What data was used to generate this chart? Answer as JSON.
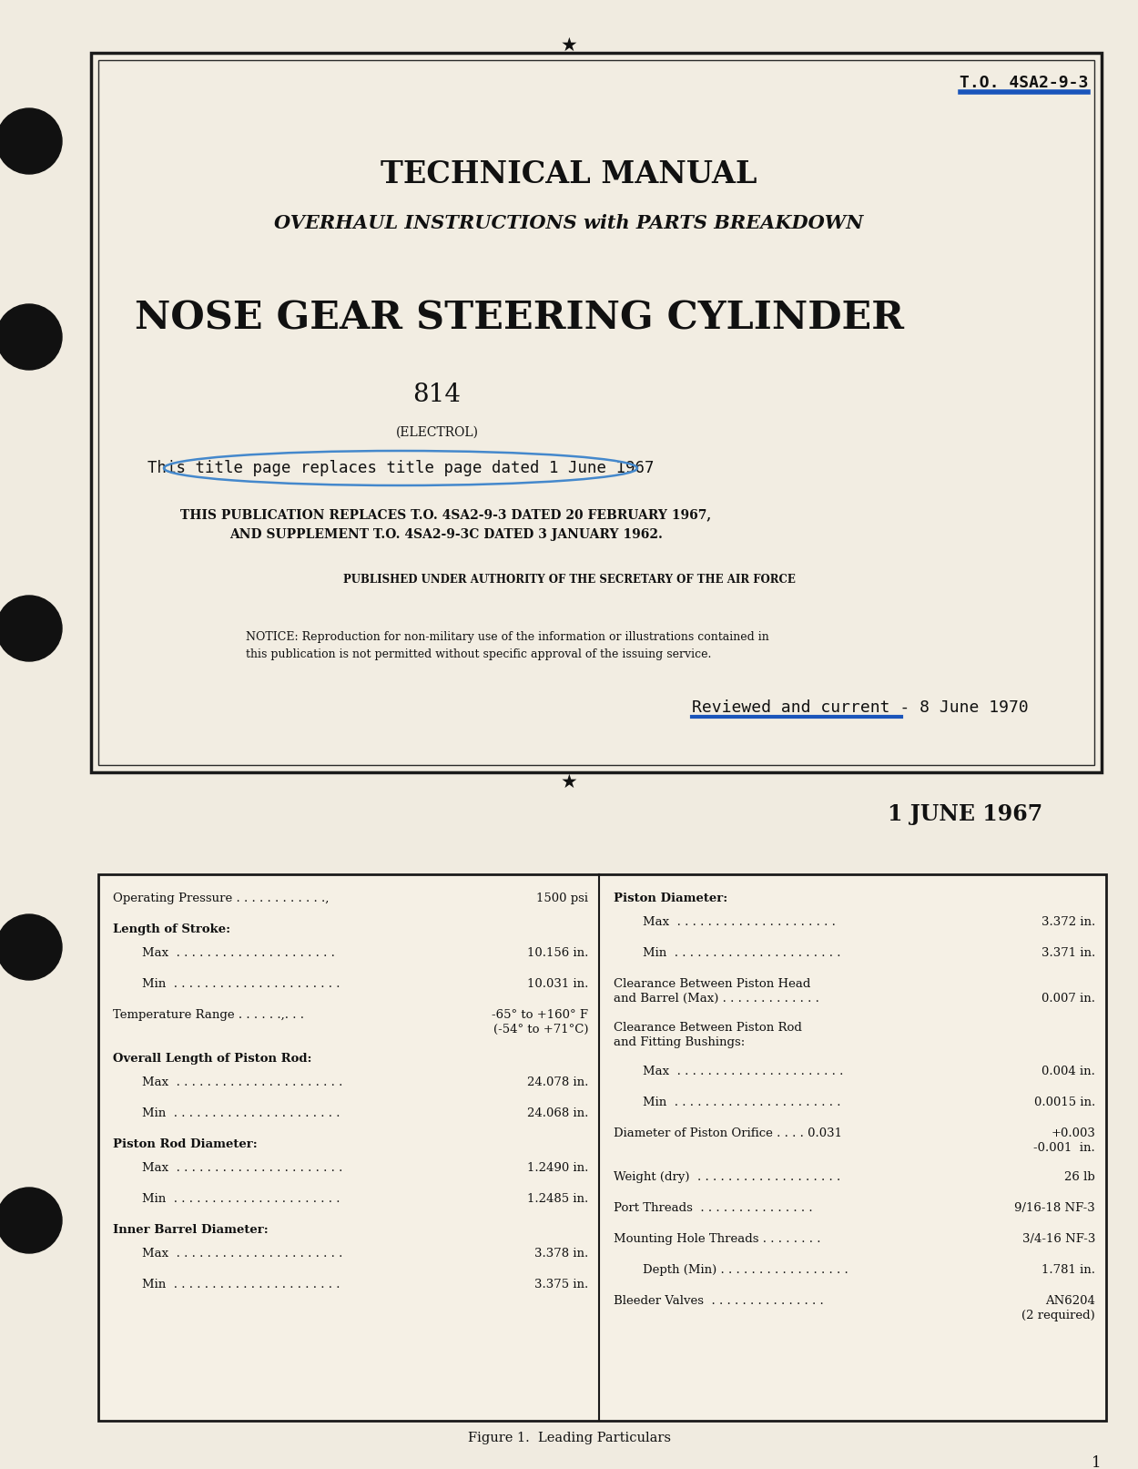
{
  "bg_color": "#f0ebe0",
  "to_number": "T.O. 4SA2-9-3",
  "title1": "TECHNICAL MANUAL",
  "title2": "OVERHAUL INSTRUCTIONS with PARTS BREAKDOWN",
  "title3": "NOSE GEAR STEERING CYLINDER",
  "part_number": "814",
  "electrol": "(ELECTROL)",
  "replace_line": "This title page replaces title page dated 1 June 1967",
  "pub_line1": "THIS PUBLICATION REPLACES T.O. 4SA2-9-3 DATED 20 FEBRUARY 1967,",
  "pub_line2": "AND SUPPLEMENT T.O. 4SA2-9-3C DATED 3 JANUARY 1962.",
  "authority": "PUBLISHED UNDER AUTHORITY OF THE SECRETARY OF THE AIR FORCE",
  "notice_line1": "NOTICE: Reproduction for non-military use of the information or illustrations contained in",
  "notice_line2": "this publication is not permitted without specific approval of the issuing service.",
  "reviewed": "Reviewed and current - 8 June 1970",
  "date": "1 JUNE 1967",
  "figure_caption": "Figure 1.  Leading Particulars",
  "page_num": "1",
  "left_col": [
    {
      "label": "Operating Pressure . . . . . . . . . . . .,",
      "value": "1500 psi",
      "indent": 0,
      "bold": false
    },
    {
      "label": "Length of Stroke:",
      "value": "",
      "indent": 0,
      "bold": true
    },
    {
      "label": "Max  . . . . . . . . . . . . . . . . . . . . .",
      "value": "10.156 in.",
      "indent": 1,
      "bold": false
    },
    {
      "label": "Min  . . . . . . . . . . . . . . . . . . . . . .",
      "value": "10.031 in.",
      "indent": 1,
      "bold": false
    },
    {
      "label": "Temperature Range . . . . . .,. . .",
      "value": "-65° to +160° F",
      "value2": "(-54° to +71°C)",
      "indent": 0,
      "bold": false
    },
    {
      "label": "Overall Length of Piston Rod:",
      "value": "",
      "indent": 0,
      "bold": true
    },
    {
      "label": "Max  . . . . . . . . . . . . . . . . . . . . . .",
      "value": "24.078 in.",
      "indent": 1,
      "bold": false
    },
    {
      "label": "Min  . . . . . . . . . . . . . . . . . . . . . .",
      "value": "24.068 in.",
      "indent": 1,
      "bold": false
    },
    {
      "label": "Piston Rod Diameter:",
      "value": "",
      "indent": 0,
      "bold": true
    },
    {
      "label": "Max  . . . . . . . . . . . . . . . . . . . . . .",
      "value": "1.2490 in.",
      "indent": 1,
      "bold": false
    },
    {
      "label": "Min  . . . . . . . . . . . . . . . . . . . . . .",
      "value": "1.2485 in.",
      "indent": 1,
      "bold": false
    },
    {
      "label": "Inner Barrel Diameter:",
      "value": "",
      "indent": 0,
      "bold": true
    },
    {
      "label": "Max  . . . . . . . . . . . . . . . . . . . . . .",
      "value": "3.378 in.",
      "indent": 1,
      "bold": false
    },
    {
      "label": "Min  . . . . . . . . . . . . . . . . . . . . . .",
      "value": "3.375 in.",
      "indent": 1,
      "bold": false
    }
  ],
  "right_col": [
    {
      "label": "Piston Diameter:",
      "value": "",
      "indent": 0,
      "bold": true,
      "multiline_label": false
    },
    {
      "label": "Max  . . . . . . . . . . . . . . . . . . . . .",
      "value": "3.372 in.",
      "indent": 1,
      "bold": false,
      "multiline_label": false
    },
    {
      "label": "Min  . . . . . . . . . . . . . . . . . . . . . .",
      "value": "3.371 in.",
      "indent": 1,
      "bold": false,
      "multiline_label": false
    },
    {
      "label": "Clearance Between Piston Head",
      "label2": "and Barrel (Max) . . . . . . . . . . . . .",
      "value": "0.007 in.",
      "indent": 0,
      "bold": false,
      "multiline_label": true
    },
    {
      "label": "Clearance Between Piston Rod",
      "label2": "and Fitting Bushings:",
      "value": "",
      "indent": 0,
      "bold": false,
      "multiline_label": true
    },
    {
      "label": "Max  . . . . . . . . . . . . . . . . . . . . . .",
      "value": "0.004 in.",
      "indent": 1,
      "bold": false,
      "multiline_label": false
    },
    {
      "label": "Min  . . . . . . . . . . . . . . . . . . . . . .",
      "value": "0.0015 in.",
      "indent": 1,
      "bold": false,
      "multiline_label": false
    },
    {
      "label": "Diameter of Piston Orifice . . . . 0.031",
      "value": "+0.003",
      "value2": "-0.001  in.",
      "indent": 0,
      "bold": false,
      "multiline_label": false
    },
    {
      "label": "Weight (dry)  . . . . . . . . . . . . . . . . . . .",
      "value": "26 lb",
      "indent": 0,
      "bold": false,
      "multiline_label": false
    },
    {
      "label": "Port Threads  . . . . . . . . . . . . . . .",
      "value": "9/16-18 NF-3",
      "indent": 0,
      "bold": false,
      "multiline_label": false
    },
    {
      "label": "Mounting Hole Threads . . . . . . . .",
      "value": "3/4-16 NF-3",
      "indent": 0,
      "bold": false,
      "multiline_label": false
    },
    {
      "label": "Depth (Min) . . . . . . . . . . . . . . . . .",
      "value": "1.781 in.",
      "indent": 1,
      "bold": false,
      "multiline_label": false
    },
    {
      "label": "Bleeder Valves  . . . . . . . . . . . . . . .",
      "value": "AN6204",
      "value2": "(2 required)",
      "indent": 0,
      "bold": false,
      "multiline_label": false
    }
  ]
}
